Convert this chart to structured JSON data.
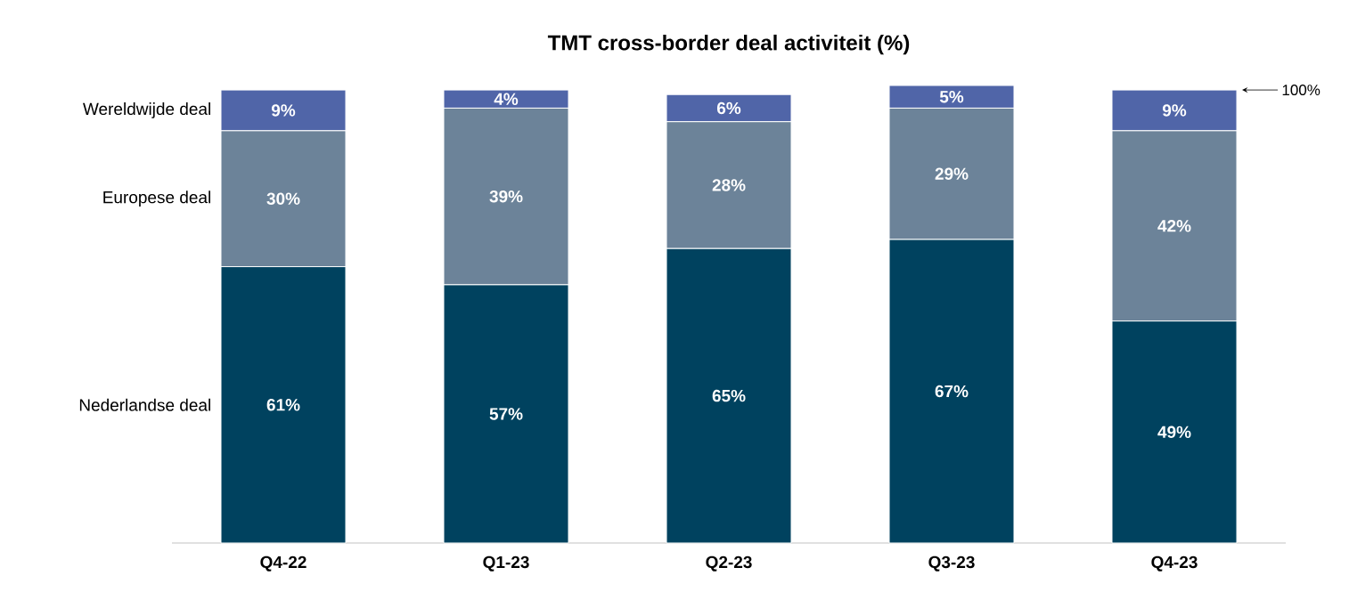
{
  "chart_data": {
    "type": "bar",
    "title": "TMT cross-border deal activiteit (%)",
    "categories": [
      "Q4-22",
      "Q1-23",
      "Q2-23",
      "Q3-23",
      "Q4-23"
    ],
    "stacked": true,
    "legend": false,
    "tick_labels": "x",
    "series": [
      {
        "name": "Nederlandse deal",
        "color": "#00425f",
        "values": [
          61,
          57,
          65,
          67,
          49
        ],
        "value_labels": [
          "61%",
          "57%",
          "65%",
          "67%",
          "49%"
        ]
      },
      {
        "name": "Europese deal",
        "color": "#6c8399",
        "values": [
          30,
          39,
          28,
          29,
          42
        ],
        "value_labels": [
          "30%",
          "39%",
          "28%",
          "29%",
          "42%"
        ]
      },
      {
        "name": "Wereldwijde deal",
        "color": "#5065a8",
        "values": [
          9,
          4,
          6,
          5,
          9
        ],
        "value_labels": [
          "9%",
          "4%",
          "6%",
          "5%",
          "9%"
        ]
      }
    ],
    "annotations": [
      "100%"
    ]
  }
}
